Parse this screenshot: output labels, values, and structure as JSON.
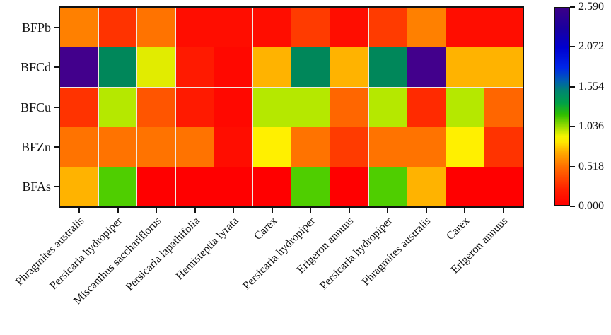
{
  "chart_data": {
    "type": "heatmap",
    "title": "",
    "rows": [
      "BFPb",
      "BFCd",
      "BFCu",
      "BFZn",
      "BFAs"
    ],
    "columns": [
      "Phragmites australis",
      "Persicaria hydropiper",
      "Miscanthus sacchariflorus",
      "Persicaria lapathifolia",
      "Hemisteptia lyrata",
      "Carex",
      "Persicaria hydropiper",
      "Erigeron annuus",
      "Persicaria hydropiper",
      "Phragmites australis",
      "Carex",
      "Erigeron annuus"
    ],
    "values_estimated": [
      [
        0.5,
        0.2,
        0.45,
        0.08,
        0.08,
        0.08,
        0.22,
        0.08,
        0.22,
        0.5,
        0.08,
        0.08
      ],
      [
        2.55,
        1.48,
        0.86,
        0.1,
        0.05,
        0.62,
        1.48,
        0.62,
        1.48,
        2.55,
        0.62,
        0.62
      ],
      [
        0.2,
        0.95,
        0.33,
        0.1,
        0.05,
        0.95,
        0.95,
        0.38,
        0.95,
        0.17,
        0.95,
        0.38
      ],
      [
        0.45,
        0.45,
        0.45,
        0.45,
        0.08,
        0.78,
        0.45,
        0.22,
        0.45,
        0.45,
        0.78,
        0.2
      ],
      [
        0.62,
        1.1,
        0.03,
        0.03,
        0.03,
        0.03,
        1.1,
        0.03,
        1.1,
        0.62,
        0.03,
        0.03
      ]
    ],
    "cell_colors": [
      [
        "#FF8000",
        "#FF3300",
        "#FF7300",
        "#FF0D00",
        "#FF0D00",
        "#FF0D00",
        "#FF3B00",
        "#FF0D00",
        "#FF3B00",
        "#FF8000",
        "#FF0D00",
        "#FF0D00"
      ],
      [
        "#42008C",
        "#00875A",
        "#E1EC00",
        "#FF1A00",
        "#FF0800",
        "#FFB300",
        "#00875A",
        "#FFB300",
        "#00875A",
        "#42008C",
        "#FFB300",
        "#FFB300"
      ],
      [
        "#FF3300",
        "#B5E800",
        "#FF5500",
        "#FF1A00",
        "#FF0800",
        "#B5E800",
        "#B5E800",
        "#FF6600",
        "#B5E800",
        "#FF2A00",
        "#B5E800",
        "#FF6600"
      ],
      [
        "#FF7300",
        "#FF7300",
        "#FF7300",
        "#FF7300",
        "#FF0D00",
        "#FFF000",
        "#FF7300",
        "#FF3B00",
        "#FF7300",
        "#FF7300",
        "#FFF000",
        "#FF3300"
      ],
      [
        "#FFB300",
        "#4FCE00",
        "#FF0000",
        "#FF0000",
        "#FF0000",
        "#FF0000",
        "#4FCE00",
        "#FF0000",
        "#4FCE00",
        "#FFB300",
        "#FF0000",
        "#FF0000"
      ]
    ],
    "value_range": [
      0.0,
      2.59
    ],
    "colorbar_ticks": [
      "2.590",
      "2.072",
      "1.554",
      "1.036",
      "0.518",
      "0.000"
    ],
    "colorbar_tick_values": [
      2.59,
      2.072,
      1.554,
      1.036,
      0.518,
      0.0
    ],
    "colorbar_gradient": [
      {
        "pos": 0.0,
        "color": "#FF0000"
      },
      {
        "pos": 0.08,
        "color": "#FF2000"
      },
      {
        "pos": 0.2,
        "color": "#FF7300"
      },
      {
        "pos": 0.27,
        "color": "#FFAE00"
      },
      {
        "pos": 0.32,
        "color": "#FFE800"
      },
      {
        "pos": 0.35,
        "color": "#F4F400"
      },
      {
        "pos": 0.4,
        "color": "#9ADC00"
      },
      {
        "pos": 0.46,
        "color": "#2EBE00"
      },
      {
        "pos": 0.52,
        "color": "#00A048"
      },
      {
        "pos": 0.58,
        "color": "#008670"
      },
      {
        "pos": 0.63,
        "color": "#0060B0"
      },
      {
        "pos": 0.7,
        "color": "#0026E8"
      },
      {
        "pos": 0.8,
        "color": "#0000D0"
      },
      {
        "pos": 0.9,
        "color": "#1A009E"
      },
      {
        "pos": 1.0,
        "color": "#3A0088"
      }
    ],
    "grid_lines": true,
    "legend_position": "right",
    "xlabel": "",
    "ylabel": ""
  },
  "colors": {
    "axis": "#111111",
    "grid_line": "#EFEAE0",
    "background": "#FFFFFF",
    "text": "#111111"
  }
}
